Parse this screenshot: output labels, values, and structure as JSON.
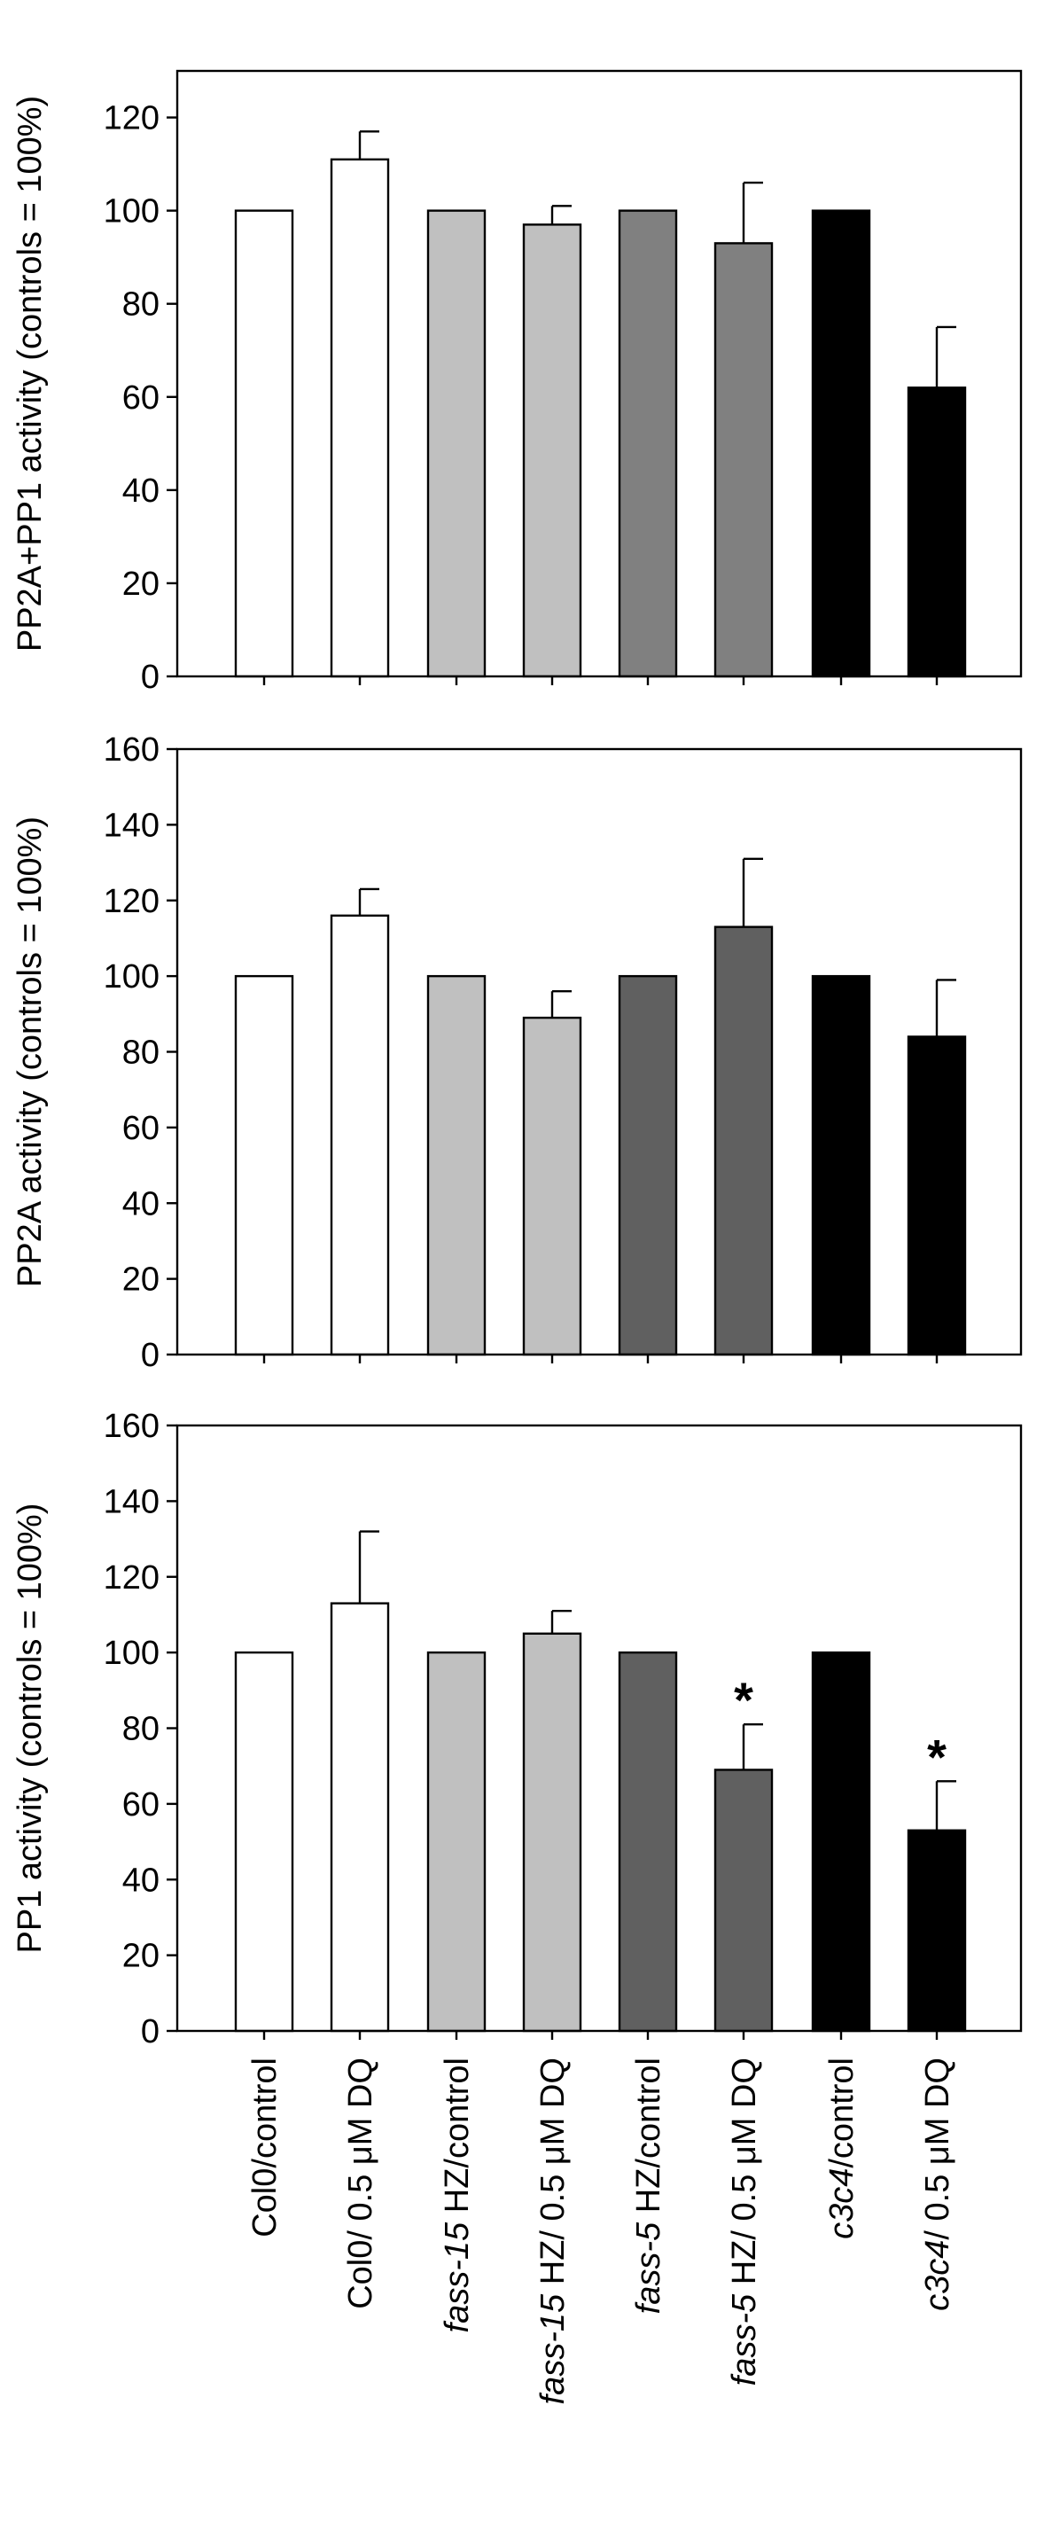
{
  "chart_data": [
    {
      "type": "bar",
      "ylabel": "PP2A+PP1 activity (controls = 100%)",
      "ylim": [
        0,
        130
      ],
      "yticks": [
        0,
        20,
        40,
        60,
        80,
        100,
        120
      ],
      "categories": [
        "Col0/control",
        "Col0/ 0.5 μM DQ",
        "fass-15 HZ/control",
        "fass-15 HZ/ 0.5 μM DQ",
        "fass-5 HZ/control",
        "fass-5 HZ/ 0.5 μM DQ",
        "c3c4/control",
        "c3c4/ 0.5 μM DQ"
      ],
      "values": [
        100,
        111,
        100,
        97,
        100,
        93,
        100,
        62
      ],
      "errors": [
        0,
        6,
        0,
        4,
        0,
        13,
        0,
        13
      ],
      "colors": [
        "#ffffff",
        "#ffffff",
        "#c0c0c0",
        "#c0c0c0",
        "#808080",
        "#808080",
        "#000000",
        "#000000"
      ],
      "annotations": [
        "",
        "",
        "",
        "",
        "",
        "",
        "",
        ""
      ]
    },
    {
      "type": "bar",
      "ylabel": "PP2A activity (controls = 100%)",
      "ylim": [
        0,
        160
      ],
      "yticks": [
        0,
        20,
        40,
        60,
        80,
        100,
        120,
        140,
        160
      ],
      "categories": [
        "Col0/control",
        "Col0/ 0.5 μM DQ",
        "fass-15 HZ/control",
        "fass-15 HZ/ 0.5 μM DQ",
        "fass-5 HZ/control",
        "fass-5 HZ/ 0.5 μM DQ",
        "c3c4/control",
        "c3c4/ 0.5 μM DQ"
      ],
      "values": [
        100,
        116,
        100,
        89,
        100,
        113,
        100,
        84
      ],
      "errors": [
        0,
        7,
        0,
        7,
        0,
        18,
        0,
        15
      ],
      "colors": [
        "#ffffff",
        "#ffffff",
        "#c0c0c0",
        "#c0c0c0",
        "#606060",
        "#606060",
        "#000000",
        "#000000"
      ],
      "annotations": [
        "",
        "",
        "",
        "",
        "",
        "",
        "",
        ""
      ]
    },
    {
      "type": "bar",
      "ylabel": "PP1 activity (controls = 100%)",
      "ylim": [
        0,
        160
      ],
      "yticks": [
        0,
        20,
        40,
        60,
        80,
        100,
        120,
        140,
        160
      ],
      "categories": [
        "Col0/control",
        "Col0/ 0.5 μM DQ",
        "fass-15 HZ/control",
        "fass-15 HZ/ 0.5 μM DQ",
        "fass-5 HZ/control",
        "fass-5 HZ/ 0.5 μM DQ",
        "c3c4/control",
        "c3c4/ 0.5 μM DQ"
      ],
      "values": [
        100,
        113,
        100,
        105,
        100,
        69,
        100,
        53
      ],
      "errors": [
        0,
        19,
        0,
        6,
        0,
        12,
        0,
        13
      ],
      "colors": [
        "#ffffff",
        "#ffffff",
        "#c0c0c0",
        "#c0c0c0",
        "#606060",
        "#606060",
        "#000000",
        "#000000"
      ],
      "annotations": [
        "",
        "",
        "",
        "",
        "",
        "*",
        "",
        "*"
      ]
    }
  ],
  "category_labels": [
    {
      "italic": "",
      "rest": "Col0/control"
    },
    {
      "italic": "",
      "rest": "Col0/ 0.5 μM DQ"
    },
    {
      "italic": "fass-15",
      "rest": " HZ/control"
    },
    {
      "italic": "fass-15",
      "rest": " HZ/ 0.5 μM DQ"
    },
    {
      "italic": "fass-5",
      "rest": " HZ/control"
    },
    {
      "italic": "fass-5",
      "rest": " HZ/ 0.5 μM DQ"
    },
    {
      "italic": "c3c4",
      "rest": "/control"
    },
    {
      "italic": "c3c4",
      "rest": "/ 0.5 μM DQ"
    }
  ]
}
